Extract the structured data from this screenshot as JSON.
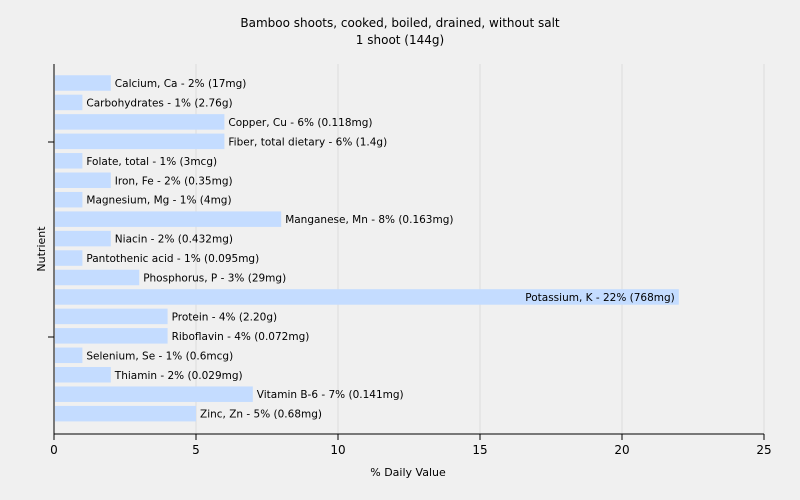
{
  "chart_data": {
    "type": "bar",
    "orientation": "horizontal",
    "title": "Bamboo shoots, cooked, boiled, drained, without salt",
    "subtitle": "1 shoot (144g)",
    "xlabel": "% Daily Value",
    "ylabel": "Nutrient",
    "xlim": [
      0,
      25
    ],
    "xticks": [
      0,
      5,
      10,
      15,
      20,
      25
    ],
    "grid": true,
    "bar_color": "#c4dcff",
    "categories": [
      "Calcium, Ca",
      "Carbohydrates",
      "Copper, Cu",
      "Fiber, total dietary",
      "Folate, total",
      "Iron, Fe",
      "Magnesium, Mg",
      "Manganese, Mn",
      "Niacin",
      "Pantothenic acid",
      "Phosphorus, P",
      "Potassium, K",
      "Protein",
      "Riboflavin",
      "Selenium, Se",
      "Thiamin",
      "Vitamin B-6",
      "Zinc, Zn"
    ],
    "values": [
      2,
      1,
      6,
      6,
      1,
      2,
      1,
      8,
      2,
      1,
      3,
      22,
      4,
      4,
      1,
      2,
      7,
      5
    ],
    "labels": [
      "Calcium, Ca - 2% (17mg)",
      "Carbohydrates - 1% (2.76g)",
      "Copper, Cu - 6% (0.118mg)",
      "Fiber, total dietary - 6% (1.4g)",
      "Folate, total - 1% (3mcg)",
      "Iron, Fe - 2% (0.35mg)",
      "Magnesium, Mg - 1% (4mg)",
      "Manganese, Mn - 8% (0.163mg)",
      "Niacin - 2% (0.432mg)",
      "Pantothenic acid - 1% (0.095mg)",
      "Phosphorus, P - 3% (29mg)",
      "Potassium, K - 22% (768mg)",
      "Protein - 4% (2.20g)",
      "Riboflavin - 4% (0.072mg)",
      "Selenium, Se - 1% (0.6mcg)",
      "Thiamin - 2% (0.029mg)",
      "Vitamin B-6 - 7% (0.141mg)",
      "Zinc, Zn - 5% (0.68mg)"
    ]
  }
}
